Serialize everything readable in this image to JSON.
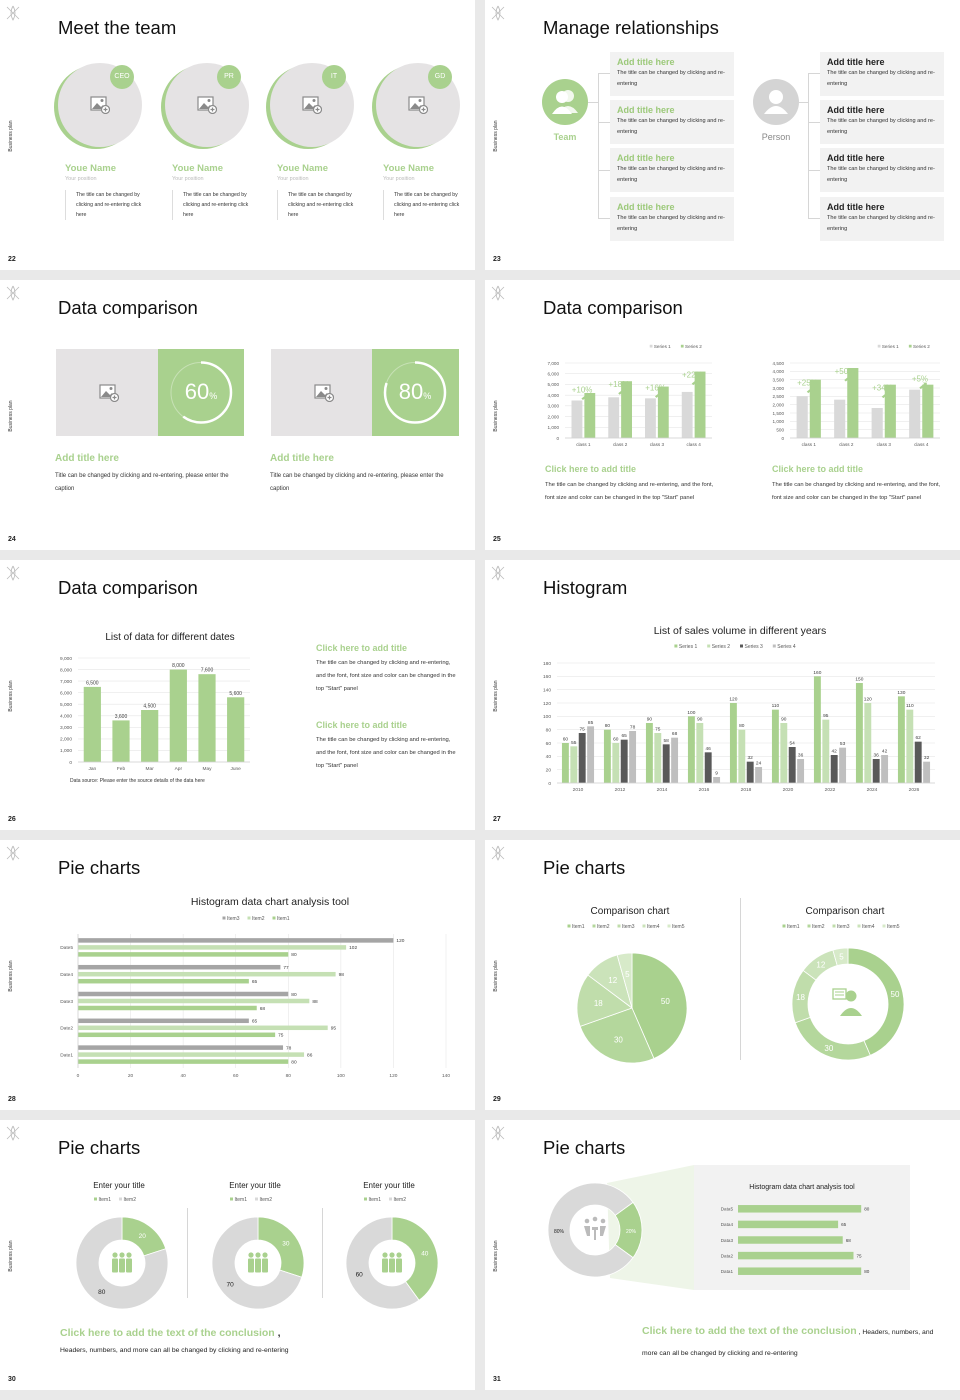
{
  "common": {
    "sidebar_label": "Business plan"
  },
  "colors": {
    "green": "#a9d18e",
    "light_green": "#c5e0b4",
    "gray": "#d9d9d9",
    "dark_gray": "#7f7f7f",
    "title_green": "#9cc97a",
    "logo_icon": "leaf-logo-icon"
  },
  "slides": {
    "s22": {
      "number": "22",
      "title": "Meet the team",
      "members": [
        {
          "badge": "CEO",
          "name": "Youe Name",
          "position": "Your position",
          "desc": "The title can be changed by clicking and re-entering click here"
        },
        {
          "badge": "PR",
          "name": "Youe Name",
          "position": "Your position",
          "desc": "The title can be changed by clicking and re-entering click here"
        },
        {
          "badge": "IT",
          "name": "Youe Name",
          "position": "Your position",
          "desc": "The title can be changed by clicking and re-entering click here"
        },
        {
          "badge": "GD",
          "name": "Youe Name",
          "position": "Your position",
          "desc": "The title can be changed by clicking and re-entering click here"
        }
      ]
    },
    "s23": {
      "number": "23",
      "title": "Manage relationships",
      "team_label": "Team",
      "person_label": "Person",
      "team_items": [
        {
          "title": "Add title here",
          "text": "The title can be changed by clicking and re-entering"
        },
        {
          "title": "Add title here",
          "text": "The title can be changed by clicking and re-entering"
        },
        {
          "title": "Add title here",
          "text": "The title can be changed by clicking and re-entering"
        },
        {
          "title": "Add title here",
          "text": "The title can be changed by clicking and re-entering"
        }
      ],
      "person_items": [
        {
          "title": "Add title here",
          "text": "The title can be changed by clicking and re-entering"
        },
        {
          "title": "Add title here",
          "text": "The title can be changed by clicking and re-entering"
        },
        {
          "title": "Add title here",
          "text": "The title can be changed by clicking and re-entering"
        },
        {
          "title": "Add title here",
          "text": "The title can be changed by clicking and re-entering"
        }
      ]
    },
    "s24": {
      "number": "24",
      "title": "Data comparison",
      "cards": [
        {
          "percent": "60",
          "unit": "%",
          "progress": 0.6,
          "title": "Add title here",
          "text": "Title can be changed by clicking and re-entering, please enter the caption"
        },
        {
          "percent": "80",
          "unit": "%",
          "progress": 0.8,
          "title": "Add title here",
          "text": "Title can be changed by clicking and re-entering, please enter the caption"
        }
      ]
    },
    "s25": {
      "number": "25",
      "title": "Data comparison",
      "blocks": [
        {
          "title": "Click here to add title",
          "text": "The title can be changed by clicking and re-entering, and the font, font size and color can be changed in the top \"Start\" panel"
        },
        {
          "title": "Click here to add title",
          "text": "The title can be changed by clicking and re-entering, and the font, font size and color can be changed in the top \"Start\" panel"
        }
      ]
    },
    "s26": {
      "number": "26",
      "title": "Data comparison",
      "data_source": "Data source: Please enter the source details of the data here",
      "blocks": [
        {
          "title": "Click here to add title",
          "text": "The title can be changed by clicking and re-entering, and the font, font size and color can be changed in the top \"Start\" panel"
        },
        {
          "title": "Click here to add title",
          "text": "The title can be changed by clicking and re-entering, and the font, font size and color can be changed in the top \"Start\" panel"
        }
      ]
    },
    "s27": {
      "number": "27",
      "title": "Histogram"
    },
    "s28": {
      "number": "28",
      "title": "Pie charts"
    },
    "s29": {
      "number": "29",
      "title": "Pie charts"
    },
    "s30": {
      "number": "30",
      "title": "Pie charts",
      "conclusion": "Click here to add the text of the conclusion",
      "conclusion_suffix": " ,",
      "text": "Headers, numbers, and more can all be changed by clicking and re-entering"
    },
    "s31": {
      "number": "31",
      "title": "Pie charts",
      "conclusion": "Click here to add the text of the conclusion",
      "text": " , Headers, numbers, and more can all be changed by clicking and re-entering"
    }
  },
  "chart_data": [
    {
      "type": "bar",
      "categories": [
        "class 1",
        "class 2",
        "class 3",
        "class 4"
      ],
      "series": [
        {
          "name": "Series 1",
          "values": [
            3500,
            3800,
            3700,
            4300
          ]
        },
        {
          "name": "Series 2",
          "values": [
            4200,
            5300,
            4800,
            6200
          ]
        }
      ],
      "annotations": [
        "+10%",
        "+18%",
        "+16%",
        "+22%"
      ],
      "ylim": [
        0,
        7000
      ],
      "yticks": [
        "0",
        "1,000",
        "2,000",
        "3,000",
        "4,000",
        "5,000",
        "6,000",
        "7,000"
      ],
      "grid": true,
      "legend": "top-right"
    },
    {
      "type": "bar",
      "categories": [
        "class 1",
        "class 2",
        "class 3",
        "class 4"
      ],
      "series": [
        {
          "name": "Series 1",
          "values": [
            2500,
            2300,
            1800,
            2900
          ]
        },
        {
          "name": "Series 2",
          "values": [
            3500,
            4200,
            3200,
            3200
          ]
        }
      ],
      "annotations": [
        "+25%",
        "+50%",
        "+34%",
        "+5%"
      ],
      "ylim": [
        0,
        4500
      ],
      "yticks": [
        "0",
        "500",
        "1,000",
        "1,500",
        "2,000",
        "2,500",
        "3,000",
        "3,500",
        "4,000",
        "4,500"
      ],
      "grid": true,
      "legend": "top-right"
    },
    {
      "type": "bar",
      "title": "List of data for different dates",
      "categories": [
        "Jan",
        "Feb",
        "Mar",
        "Apr",
        "May",
        "June"
      ],
      "values": [
        6500,
        3600,
        4500,
        8000,
        7600,
        5600
      ],
      "data_labels": [
        "6,500",
        "3,600",
        "4,500",
        "8,000",
        "7,600",
        "5,600"
      ],
      "ylim": [
        0,
        9000
      ],
      "yticks": [
        "0",
        "1,000",
        "2,000",
        "3,000",
        "4,000",
        "5,000",
        "6,000",
        "7,000",
        "8,000",
        "9,000"
      ],
      "grid": true
    },
    {
      "type": "bar",
      "title": "List of sales volume in different years",
      "categories": [
        "2010",
        "2012",
        "2014",
        "2016",
        "2018",
        "2020",
        "2022",
        "2024",
        "2026"
      ],
      "series": [
        {
          "name": "Series 1",
          "values": [
            60,
            80,
            90,
            100,
            120,
            110,
            160,
            150,
            130
          ]
        },
        {
          "name": "Series 2",
          "values": [
            55,
            60,
            75,
            90,
            80,
            90,
            95,
            120,
            110
          ]
        },
        {
          "name": "Series 3",
          "values": [
            75,
            65,
            58,
            46,
            32,
            54,
            42,
            36,
            62
          ]
        },
        {
          "name": "Series 4",
          "values": [
            85,
            78,
            68,
            9,
            24,
            36,
            53,
            42,
            32
          ]
        }
      ],
      "ylim": [
        0,
        180
      ],
      "yticks": [
        "0",
        "20",
        "40",
        "60",
        "80",
        "100",
        "120",
        "140",
        "160",
        "180"
      ],
      "grid": true,
      "legend": "top"
    },
    {
      "type": "bar",
      "orientation": "horizontal",
      "title": "Histogram data chart analysis tool",
      "categories": [
        "Date1",
        "Date2",
        "Date3",
        "Date4",
        "Date5"
      ],
      "series": [
        {
          "name": "Item3",
          "values": [
            78,
            65,
            80,
            77,
            120
          ]
        },
        {
          "name": "Item2",
          "values": [
            86,
            95,
            88,
            98,
            102
          ]
        },
        {
          "name": "Item1",
          "values": [
            80,
            75,
            68,
            65,
            80
          ]
        }
      ],
      "xlim": [
        0,
        140
      ],
      "xticks": [
        "0",
        "20",
        "40",
        "60",
        "80",
        "100",
        "120",
        "140"
      ],
      "grid": true,
      "legend": "top"
    },
    {
      "type": "pie",
      "title": "Comparison chart",
      "categories": [
        "Item1",
        "Item2",
        "Item3",
        "Item4",
        "Item5"
      ],
      "values": [
        50,
        30,
        18,
        12,
        5
      ],
      "legend": "top"
    },
    {
      "type": "pie",
      "donut": true,
      "title": "Comparison chart",
      "categories": [
        "Item1",
        "Item2",
        "Item3",
        "Item4",
        "Item5"
      ],
      "values": [
        50,
        30,
        18,
        12,
        5
      ],
      "legend": "top"
    },
    {
      "type": "pie",
      "donut": true,
      "title": "Enter your title",
      "categories": [
        "Item1",
        "Item2"
      ],
      "values": [
        20,
        80
      ],
      "legend": "top"
    },
    {
      "type": "pie",
      "donut": true,
      "title": "Enter your title",
      "categories": [
        "Item1",
        "Item2"
      ],
      "values": [
        30,
        70
      ],
      "legend": "top"
    },
    {
      "type": "pie",
      "donut": true,
      "title": "Enter your title",
      "categories": [
        "Item1",
        "Item2"
      ],
      "values": [
        40,
        60
      ],
      "legend": "top"
    },
    {
      "type": "pie",
      "donut": true,
      "values": [
        20,
        80
      ],
      "data_labels": [
        "20%",
        "80%"
      ]
    },
    {
      "type": "bar",
      "orientation": "horizontal",
      "title": "Histogram data chart analysis tool",
      "categories": [
        "Data1",
        "Data2",
        "Data3",
        "Data4",
        "Data5"
      ],
      "values": [
        80,
        75,
        68,
        65,
        80
      ],
      "xlim": [
        0,
        100
      ]
    }
  ]
}
